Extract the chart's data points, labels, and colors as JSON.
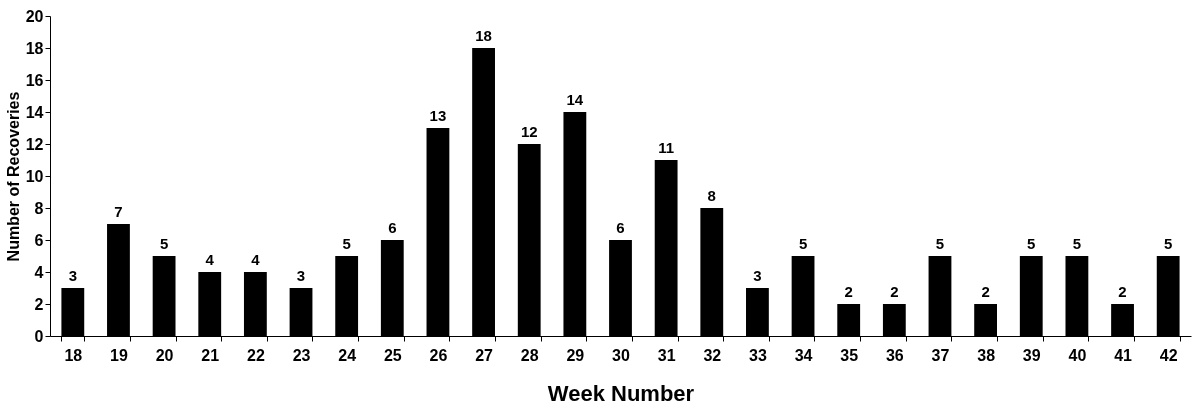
{
  "chart_data": {
    "type": "bar",
    "xlabel": "Week Number",
    "ylabel": "Number of Recoveries",
    "categories": [
      "18",
      "19",
      "20",
      "21",
      "22",
      "23",
      "24",
      "25",
      "26",
      "27",
      "28",
      "29",
      "30",
      "31",
      "32",
      "33",
      "34",
      "35",
      "36",
      "37",
      "38",
      "39",
      "40",
      "41",
      "42"
    ],
    "values": [
      3,
      7,
      5,
      4,
      4,
      3,
      5,
      6,
      13,
      18,
      12,
      14,
      6,
      11,
      8,
      3,
      5,
      2,
      2,
      5,
      2,
      5,
      5,
      2,
      5
    ],
    "color": "#000000",
    "ylim": [
      0,
      20
    ],
    "yticks": [
      0,
      2,
      4,
      6,
      8,
      10,
      12,
      14,
      16,
      18,
      20
    ],
    "grid": false,
    "data_labels": true
  }
}
